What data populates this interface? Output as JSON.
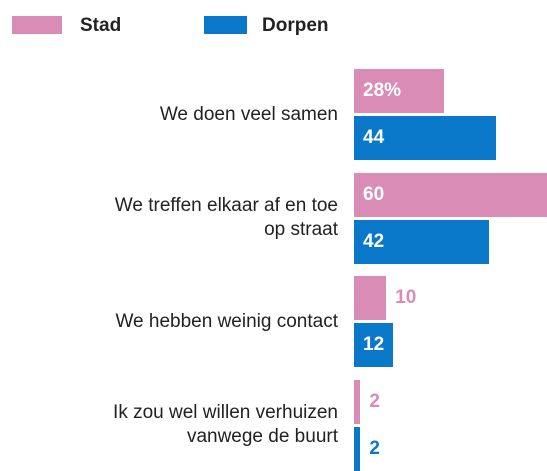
{
  "chart_data": {
    "type": "bar",
    "orientation": "horizontal",
    "categories": [
      "We doen veel samen",
      "We treffen elkaar af en toe\nop straat",
      "We hebben weinig contact",
      "Ik zou wel willen verhuizen\nvanwege de buurt"
    ],
    "series": [
      {
        "name": "Stad",
        "color": "#d98cb5",
        "values": [
          28,
          60,
          10,
          2
        ],
        "value_labels": [
          "28%",
          "60",
          "10",
          "2"
        ]
      },
      {
        "name": "Dorpen",
        "color": "#0a78c8",
        "values": [
          44,
          42,
          12,
          2
        ]
      }
    ],
    "legend": "top-left"
  }
}
